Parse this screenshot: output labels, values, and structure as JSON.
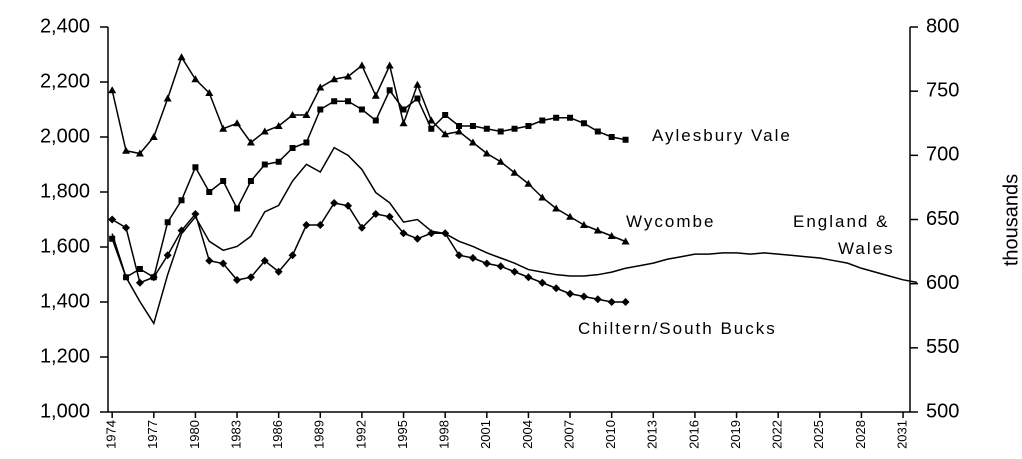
{
  "chart_data": {
    "type": "line",
    "y2_label": "thousands",
    "x": [
      1974,
      1975,
      1976,
      1977,
      1978,
      1979,
      1980,
      1981,
      1982,
      1983,
      1984,
      1985,
      1986,
      1987,
      1988,
      1989,
      1990,
      1991,
      1992,
      1993,
      1994,
      1995,
      1996,
      1997,
      1998,
      1999,
      2000,
      2001,
      2002,
      2003,
      2004,
      2005,
      2006,
      2007,
      2008,
      2009,
      2010,
      2011,
      2012,
      2013,
      2014,
      2015,
      2016,
      2017,
      2018,
      2019,
      2020,
      2021,
      2022,
      2023,
      2024,
      2025,
      2026,
      2027,
      2028,
      2029,
      2030,
      2031,
      2032
    ],
    "xlim": [
      1973.7,
      2031.5
    ],
    "xticks": [
      1974,
      1977,
      1980,
      1983,
      1986,
      1989,
      1992,
      1995,
      1998,
      2001,
      2004,
      2007,
      2010,
      2013,
      2016,
      2019,
      2022,
      2025,
      2028,
      2031
    ],
    "ylim": [
      1000,
      2400
    ],
    "yticks": [
      {
        "value": 1000,
        "label": "1,000"
      },
      {
        "value": 1200,
        "label": "1,200"
      },
      {
        "value": 1400,
        "label": "1,400"
      },
      {
        "value": 1600,
        "label": "1,600"
      },
      {
        "value": 1800,
        "label": "1,800"
      },
      {
        "value": 2000,
        "label": "2,000"
      },
      {
        "value": 2200,
        "label": "2,200"
      },
      {
        "value": 2400,
        "label": "2,400"
      }
    ],
    "y2lim": [
      500,
      800
    ],
    "y2ticks": [
      500,
      550,
      600,
      650,
      700,
      750,
      800
    ],
    "series": [
      {
        "label": [
          "Aylesbury Vale"
        ],
        "marker": "square",
        "color": "#000000",
        "values": [
          1630,
          1490,
          1520,
          1490,
          1690,
          1770,
          1890,
          1800,
          1840,
          1740,
          1840,
          1900,
          1910,
          1960,
          1980,
          2100,
          2130,
          2130,
          2100,
          2060,
          2170,
          2100,
          2140,
          2030,
          2080,
          2040,
          2040,
          2030,
          2020,
          2030,
          2040,
          2060,
          2070,
          2070,
          2050,
          2020,
          2000,
          1990,
          null,
          null,
          null,
          null,
          null,
          null,
          null,
          null,
          null,
          null,
          null,
          null,
          null,
          null,
          null,
          null,
          null,
          null,
          null,
          null,
          null
        ]
      },
      {
        "label": [
          "Wycombe"
        ],
        "marker": "triangle",
        "color": "#000000",
        "values": [
          2170,
          1950,
          1940,
          2000,
          2140,
          2290,
          2210,
          2160,
          2030,
          2050,
          1980,
          2020,
          2040,
          2080,
          2080,
          2180,
          2210,
          2220,
          2260,
          2150,
          2260,
          2050,
          2190,
          2060,
          2010,
          2020,
          1980,
          1940,
          1910,
          1870,
          1830,
          1780,
          1740,
          1710,
          1680,
          1660,
          1640,
          1620,
          null,
          null,
          null,
          null,
          null,
          null,
          null,
          null,
          null,
          null,
          null,
          null,
          null,
          null,
          null,
          null,
          null,
          null,
          null,
          null,
          null
        ]
      },
      {
        "label": [
          "Chiltern/South Bucks"
        ],
        "marker": "diamond",
        "color": "#000000",
        "values": [
          1700,
          1670,
          1470,
          1490,
          1570,
          1660,
          1720,
          1550,
          1540,
          1480,
          1490,
          1550,
          1510,
          1570,
          1680,
          1680,
          1760,
          1750,
          1670,
          1720,
          1710,
          1650,
          1630,
          1650,
          1650,
          1570,
          1560,
          1540,
          1530,
          1510,
          1490,
          1470,
          1450,
          1430,
          1420,
          1410,
          1400,
          1400,
          null,
          null,
          null,
          null,
          null,
          null,
          null,
          null,
          null,
          null,
          null,
          null,
          null,
          null,
          null,
          null,
          null,
          null,
          null,
          null,
          null
        ]
      },
      {
        "label": [
          "England &",
          "Wales"
        ],
        "marker": "none",
        "color": "#000000",
        "axis": "y2",
        "values": [
          639,
          605,
          586,
          569,
          607,
          639,
          652,
          633,
          626,
          629,
          637,
          656,
          661,
          680,
          693,
          687,
          706,
          700,
          689,
          671,
          663,
          648,
          650,
          641,
          639,
          633,
          629,
          624,
          620,
          616,
          611,
          609,
          607,
          606,
          606,
          607,
          609,
          612,
          614,
          616,
          619,
          621,
          623,
          623,
          624,
          624,
          623,
          624,
          623,
          622,
          621,
          620,
          618,
          616,
          612,
          609,
          606,
          603,
          601
        ]
      }
    ]
  }
}
